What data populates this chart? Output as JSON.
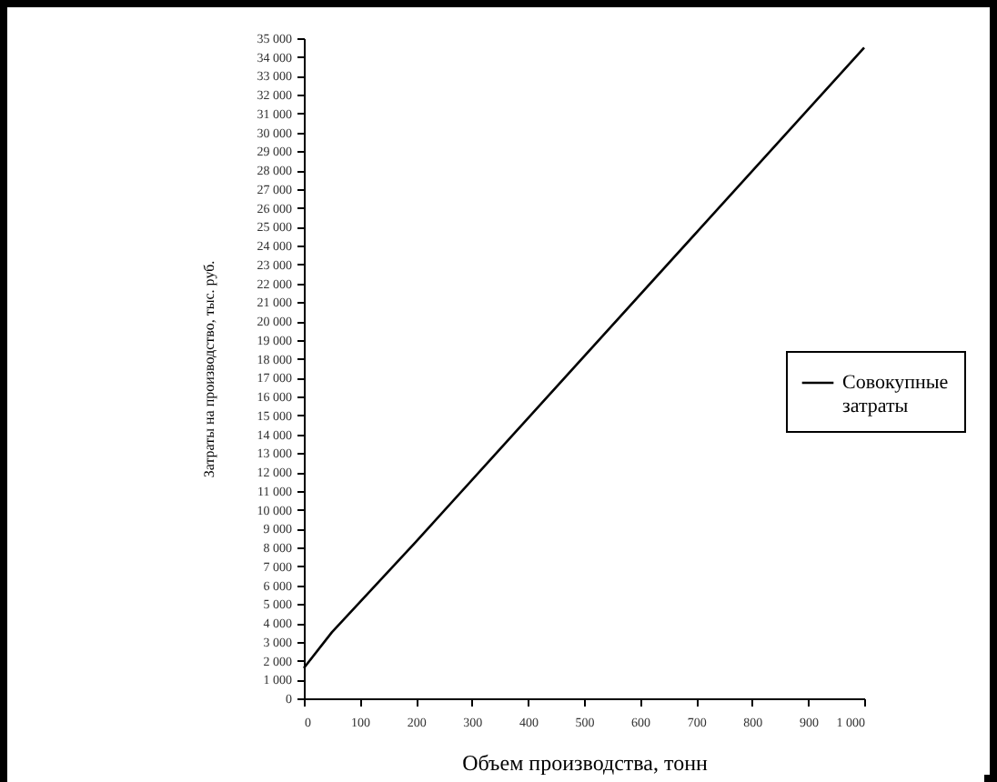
{
  "chart_data": {
    "type": "line",
    "xlabel": "Объем производства, тонн",
    "ylabel": "Затраты на производство, тыс. руб.",
    "x": [
      0,
      50,
      200,
      1000
    ],
    "series": [
      {
        "name": "Совокупные затраты",
        "color": "#000000",
        "values": [
          1600,
          3500,
          8300,
          34500
        ]
      }
    ],
    "xlim": [
      0,
      1000
    ],
    "xticks": [
      0,
      100,
      200,
      300,
      400,
      500,
      600,
      700,
      800,
      900,
      1000
    ],
    "ylim": [
      0,
      35000
    ],
    "yticks": [
      0,
      1000,
      2000,
      3000,
      4000,
      5000,
      6000,
      7000,
      8000,
      9000,
      10000,
      11000,
      12000,
      13000,
      14000,
      15000,
      16000,
      17000,
      18000,
      19000,
      20000,
      21000,
      22000,
      23000,
      24000,
      25000,
      26000,
      27000,
      28000,
      29000,
      30000,
      31000,
      32000,
      33000,
      34000,
      35000
    ],
    "grid": false,
    "legend": "right",
    "marker": "none",
    "line_style": "solid"
  }
}
